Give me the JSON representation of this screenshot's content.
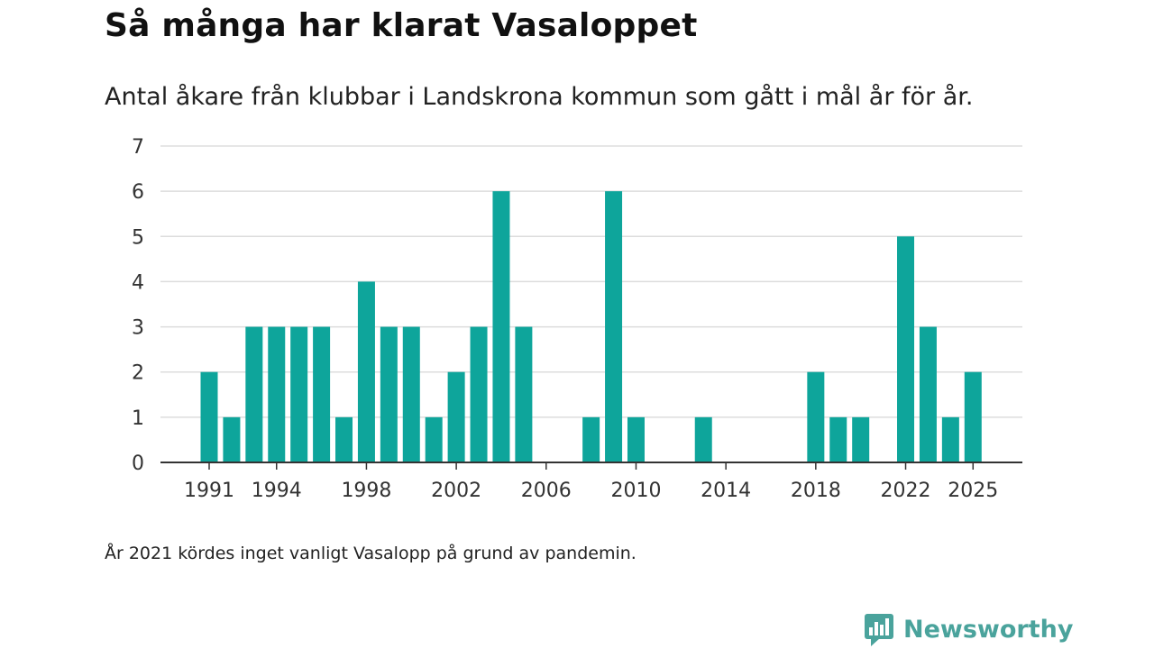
{
  "title": "Så många har klarat Vasaloppet",
  "subtitle": "Antal åkare från klubbar i Landskrona kommun som gått i mål år för år.",
  "note": "År 2021 kördes inget vanligt Vasalopp på grund av pandemin.",
  "brand": {
    "name": "Newsworthy"
  },
  "colors": {
    "bar": "#0ea59b",
    "grid": "#dddddd",
    "axis": "#333333",
    "brand": "#4aa39c"
  },
  "chart_data": {
    "type": "bar",
    "title": "Så många har klarat Vasaloppet",
    "xlabel": "",
    "ylabel": "",
    "ylim": [
      0,
      7
    ],
    "yticks": [
      0,
      1,
      2,
      3,
      4,
      5,
      6,
      7
    ],
    "xticks": [
      1991,
      1994,
      1998,
      2002,
      2006,
      2010,
      2014,
      2018,
      2022,
      2025
    ],
    "grid": true,
    "categories": [
      1991,
      1992,
      1993,
      1994,
      1995,
      1996,
      1997,
      1998,
      1999,
      2000,
      2001,
      2002,
      2003,
      2004,
      2005,
      2006,
      2007,
      2008,
      2009,
      2010,
      2011,
      2012,
      2013,
      2014,
      2015,
      2016,
      2017,
      2018,
      2019,
      2020,
      2021,
      2022,
      2023,
      2024,
      2025
    ],
    "values": [
      2,
      1,
      3,
      3,
      3,
      3,
      1,
      4,
      3,
      3,
      1,
      2,
      3,
      6,
      3,
      0,
      0,
      1,
      6,
      1,
      0,
      0,
      1,
      0,
      0,
      0,
      0,
      2,
      1,
      1,
      0,
      5,
      3,
      1,
      2
    ]
  }
}
